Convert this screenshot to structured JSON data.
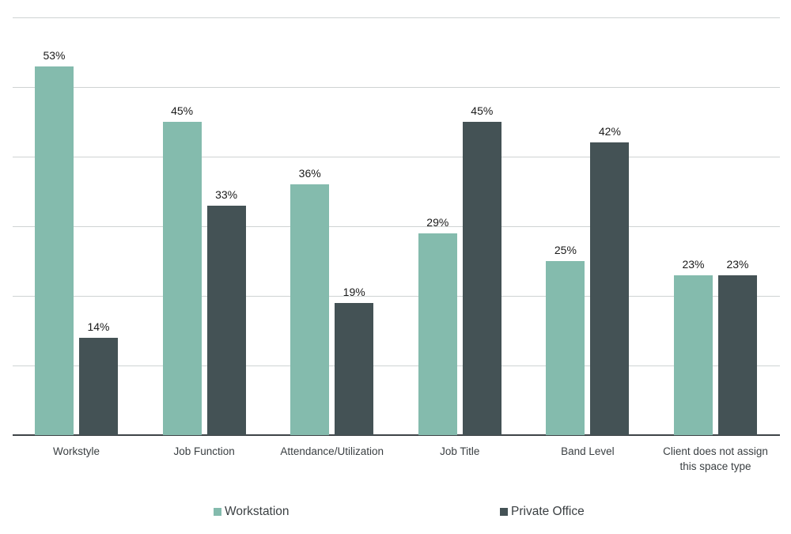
{
  "chart_data": {
    "type": "bar",
    "title": "",
    "xlabel": "",
    "ylabel": "",
    "ylim": [
      0,
      60
    ],
    "grid": true,
    "gridlines": [
      0,
      10,
      20,
      30,
      40,
      50,
      60
    ],
    "legend_position": "bottom",
    "categories": [
      "Workstyle",
      "Job Function",
      "Attendance/Utilization",
      "Job Title",
      "Band Level",
      "Client does not assign this space type"
    ],
    "category_lines": [
      [
        "Workstyle"
      ],
      [
        "Job Function"
      ],
      [
        "Attendance/Utilization"
      ],
      [
        "Job Title"
      ],
      [
        "Band Level"
      ],
      [
        "Client does not assign",
        "this space type"
      ]
    ],
    "series": [
      {
        "name": "Workstation",
        "color": "#84bbad",
        "values": [
          53,
          45,
          36,
          29,
          25,
          23
        ],
        "labels": [
          "53%",
          "45%",
          "36%",
          "29%",
          "25%",
          "23%"
        ]
      },
      {
        "name": "Private Office",
        "color": "#445255",
        "values": [
          14,
          33,
          19,
          45,
          42,
          23
        ],
        "labels": [
          "14%",
          "33%",
          "19%",
          "45%",
          "42%",
          "23%"
        ]
      }
    ]
  },
  "legend": {
    "items": [
      {
        "label": "Workstation",
        "color": "#84bbad"
      },
      {
        "label": "Private Office",
        "color": "#445255"
      }
    ]
  }
}
